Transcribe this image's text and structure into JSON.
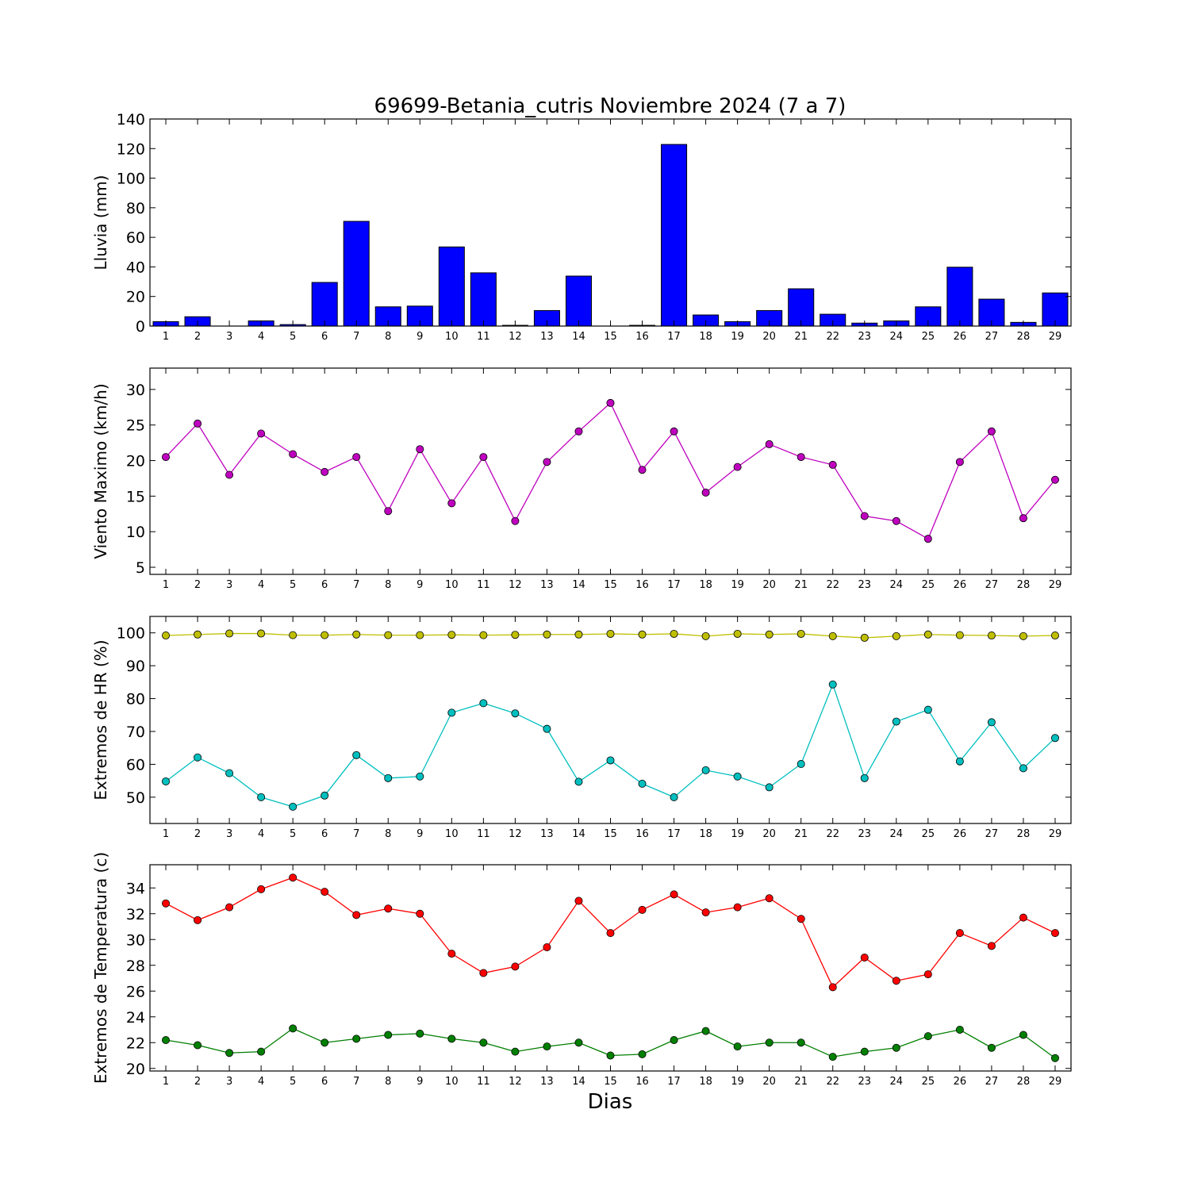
{
  "chart_data": {
    "title": "69699-Betania_cutris Noviembre 2024  (7 a 7)",
    "xlabel": "Dias",
    "days": [
      1,
      2,
      3,
      4,
      5,
      6,
      7,
      8,
      9,
      10,
      11,
      12,
      13,
      14,
      15,
      16,
      17,
      18,
      19,
      20,
      21,
      22,
      23,
      24,
      25,
      26,
      27,
      28,
      29
    ],
    "panels": [
      {
        "type": "bar",
        "ylabel": "Lluvia (mm)",
        "ylim": [
          0,
          140
        ],
        "yticks": [
          0,
          20,
          40,
          60,
          80,
          100,
          120,
          140
        ],
        "series": [
          {
            "color": "#0000ff",
            "values": [
              3.0,
              6.3,
              0.0,
              3.5,
              1.0,
              29.5,
              70.8,
              13.0,
              13.5,
              53.5,
              36.0,
              0.5,
              10.5,
              33.8,
              0.0,
              0.5,
              122.8,
              7.5,
              3.0,
              10.5,
              25.2,
              8.0,
              2.0,
              3.5,
              13.0,
              39.8,
              18.2,
              2.5,
              22.4
            ]
          }
        ]
      },
      {
        "type": "line",
        "ylabel": "Viento Maximo (km/h)",
        "ylim": [
          4,
          33
        ],
        "yticks": [
          5,
          10,
          15,
          20,
          25,
          30
        ],
        "series": [
          {
            "color": "#bf00bf",
            "values": [
              20.5,
              25.2,
              18.0,
              23.8,
              20.9,
              18.4,
              20.5,
              12.9,
              21.6,
              14.0,
              20.5,
              11.5,
              19.8,
              24.1,
              28.1,
              18.7,
              24.1,
              15.5,
              19.1,
              22.3,
              20.5,
              19.4,
              12.2,
              11.5,
              9.0,
              19.8,
              24.1,
              11.9,
              17.3
            ]
          }
        ]
      },
      {
        "type": "line",
        "ylabel": "Extremos de HR (%)",
        "ylim": [
          42,
          105
        ],
        "yticks": [
          50,
          60,
          70,
          80,
          90,
          100
        ],
        "series": [
          {
            "color": "#bfbf00",
            "values": [
              99.2,
              99.5,
              99.8,
              99.8,
              99.3,
              99.3,
              99.5,
              99.3,
              99.3,
              99.4,
              99.3,
              99.4,
              99.5,
              99.5,
              99.7,
              99.5,
              99.7,
              99.0,
              99.7,
              99.5,
              99.7,
              99.0,
              98.5,
              99.0,
              99.5,
              99.3,
              99.2,
              99.0,
              99.2
            ]
          },
          {
            "color": "#00bfbf",
            "values": [
              54.8,
              62.1,
              57.3,
              50.0,
              47.1,
              50.5,
              62.8,
              55.8,
              56.3,
              75.7,
              78.6,
              75.5,
              70.8,
              54.7,
              61.2,
              54.1,
              50.0,
              58.2,
              56.3,
              53.0,
              60.1,
              84.3,
              55.8,
              73.0,
              76.6,
              60.9,
              72.8,
              58.8,
              68.0
            ]
          }
        ]
      },
      {
        "type": "line",
        "ylabel": "Extremos de Temperatura (c)",
        "ylim": [
          19.8,
          35.8
        ],
        "yticks": [
          20,
          22,
          24,
          26,
          28,
          30,
          32,
          34
        ],
        "series": [
          {
            "color": "#ff0000",
            "values": [
              32.8,
              31.5,
              32.5,
              33.9,
              34.8,
              33.7,
              31.9,
              32.4,
              32.0,
              28.9,
              27.4,
              27.9,
              29.4,
              33.0,
              30.5,
              32.3,
              33.5,
              32.1,
              32.5,
              33.2,
              31.6,
              26.3,
              28.6,
              26.8,
              27.3,
              30.5,
              29.5,
              31.7,
              30.5
            ]
          },
          {
            "color": "#007f00",
            "values": [
              22.2,
              21.8,
              21.2,
              21.3,
              23.1,
              22.0,
              22.3,
              22.6,
              22.7,
              22.3,
              22.0,
              21.3,
              21.7,
              22.0,
              21.0,
              21.1,
              22.2,
              22.9,
              21.7,
              22.0,
              22.0,
              20.9,
              21.3,
              21.6,
              22.5,
              23.0,
              21.6,
              22.6,
              20.8
            ]
          }
        ]
      }
    ]
  }
}
